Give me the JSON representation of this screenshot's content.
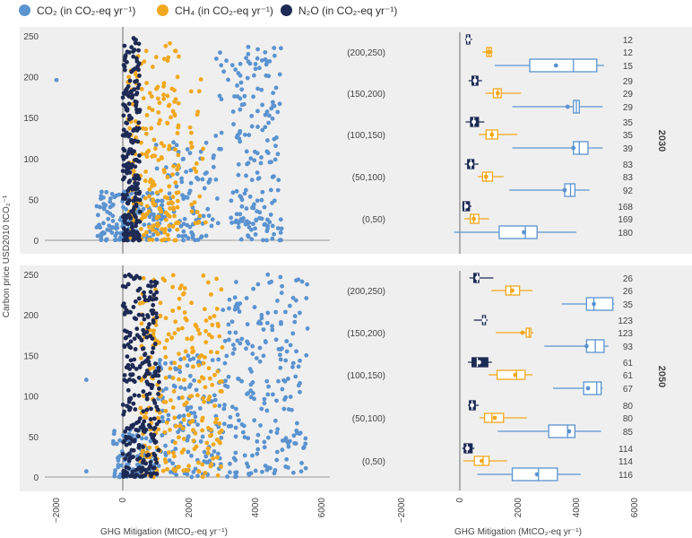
{
  "legend": {
    "co2": {
      "label": "CO₂ (in CO₂-eq yr⁻¹)",
      "color": "#5b93d0"
    },
    "ch4": {
      "label": "CH₄ (in CO₂-eq yr⁻¹)",
      "color": "#f2a81d"
    },
    "n2o": {
      "label": "N₂O (in CO₂-eq yr⁻¹)",
      "color": "#1d2a55"
    }
  },
  "axes": {
    "y_label": "Carbon price USD2010 tCO₂⁻¹",
    "x_label": "GHG Mitigation (MtCO₂-eq yr⁻¹)",
    "x_ticks": [
      "−2000",
      "0",
      "2000",
      "4000",
      "6000"
    ],
    "y_ticks": [
      "0",
      "50",
      "100",
      "150",
      "200",
      "250"
    ]
  },
  "chart_data": [
    {
      "type": "scatter",
      "panel": "2030",
      "xlim": [
        -2600,
        6400
      ],
      "ylim": [
        0,
        255
      ],
      "note": "point clouds approximated"
    },
    {
      "type": "box",
      "panel": "2030",
      "year_label": "2030",
      "xlim": [
        -2600,
        6400
      ],
      "groups": [
        {
          "category": "(200,250)",
          "boxes": [
            {
              "gas": "n2o",
              "n": "12",
              "min": 180,
              "q1": 230,
              "median": 280,
              "q3": 340,
              "max": 420,
              "mean": 290
            },
            {
              "gas": "ch4",
              "n": "12",
              "min": 780,
              "q1": 920,
              "median": 1000,
              "q3": 1080,
              "max": 1130,
              "mean": 1000
            },
            {
              "gas": "co2",
              "n": "15",
              "min": 1200,
              "q1": 2400,
              "median": 3900,
              "q3": 4700,
              "max": 4950,
              "mean": 3300
            }
          ]
        },
        {
          "category": "(150,200)",
          "boxes": [
            {
              "gas": "n2o",
              "n": "29",
              "min": 300,
              "q1": 420,
              "median": 520,
              "q3": 620,
              "max": 760,
              "mean": 520
            },
            {
              "gas": "ch4",
              "n": "29",
              "min": 880,
              "q1": 1150,
              "median": 1300,
              "q3": 1420,
              "max": 2100,
              "mean": 1300
            },
            {
              "gas": "co2",
              "n": "29",
              "min": 1800,
              "q1": 3900,
              "median": 4000,
              "q3": 4100,
              "max": 4900,
              "mean": 3700
            }
          ]
        },
        {
          "category": "(100,150)",
          "boxes": [
            {
              "gas": "n2o",
              "n": "35",
              "min": 200,
              "q1": 370,
              "median": 480,
              "q3": 640,
              "max": 840,
              "mean": 480
            },
            {
              "gas": "ch4",
              "n": "35",
              "min": 650,
              "q1": 900,
              "median": 1100,
              "q3": 1300,
              "max": 1980,
              "mean": 1100
            },
            {
              "gas": "co2",
              "n": "39",
              "min": 1800,
              "q1": 3900,
              "median": 4100,
              "q3": 4400,
              "max": 4900,
              "mean": 3900
            }
          ]
        },
        {
          "category": "(50,100)",
          "boxes": [
            {
              "gas": "n2o",
              "n": "83",
              "min": 170,
              "q1": 270,
              "median": 380,
              "q3": 480,
              "max": 640,
              "mean": 380
            },
            {
              "gas": "ch4",
              "n": "83",
              "min": 610,
              "q1": 780,
              "median": 900,
              "q3": 1120,
              "max": 1500,
              "mean": 900
            },
            {
              "gas": "co2",
              "n": "92",
              "min": 1700,
              "q1": 3600,
              "median": 3800,
              "q3": 3950,
              "max": 4450,
              "mean": 3600
            }
          ]
        },
        {
          "category": "(0,50)",
          "boxes": [
            {
              "gas": "n2o",
              "n": "168",
              "min": 80,
              "q1": 110,
              "median": 180,
              "q3": 330,
              "max": 400,
              "mean": 220
            },
            {
              "gas": "ch4",
              "n": "169",
              "min": 160,
              "q1": 360,
              "median": 480,
              "q3": 650,
              "max": 1000,
              "mean": 480
            },
            {
              "gas": "co2",
              "n": "180",
              "min": -200,
              "q1": 1350,
              "median": 2250,
              "q3": 2650,
              "max": 4000,
              "mean": 2200
            }
          ]
        }
      ]
    },
    {
      "type": "scatter",
      "panel": "2050",
      "xlim": [
        -2600,
        6400
      ],
      "ylim": [
        0,
        255
      ],
      "note": "point clouds approximated"
    },
    {
      "type": "box",
      "panel": "2050",
      "year_label": "2050",
      "xlim": [
        -2600,
        6400
      ],
      "groups": [
        {
          "category": "(200,250)",
          "boxes": [
            {
              "gas": "n2o",
              "n": "26",
              "min": 330,
              "q1": 480,
              "median": 600,
              "q3": 650,
              "max": 1150,
              "mean": 600
            },
            {
              "gas": "ch4",
              "n": "26",
              "min": 1080,
              "q1": 1580,
              "median": 1750,
              "q3": 2050,
              "max": 2500,
              "mean": 1800
            },
            {
              "gas": "co2",
              "n": "35",
              "min": 3500,
              "q1": 4350,
              "median": 4600,
              "q3": 5250,
              "max": 5300,
              "mean": 4600
            }
          ]
        },
        {
          "category": "(150,200)",
          "boxes": [
            {
              "gas": "n2o",
              "n": "123",
              "min": 480,
              "q1": 780,
              "median": 830,
              "q3": 880,
              "max": 960,
              "mean": 830
            },
            {
              "gas": "ch4",
              "n": "123",
              "min": 1230,
              "q1": 2280,
              "median": 2380,
              "q3": 2440,
              "max": 2520,
              "mean": 2150
            },
            {
              "gas": "co2",
              "n": "93",
              "min": 2900,
              "q1": 4350,
              "median": 4650,
              "q3": 4950,
              "max": 5100,
              "mean": 4350
            }
          ]
        },
        {
          "category": "(100,150)",
          "boxes": [
            {
              "gas": "n2o",
              "n": "61",
              "min": 280,
              "q1": 420,
              "median": 600,
              "q3": 960,
              "max": 1100,
              "mean": 660
            },
            {
              "gas": "ch4",
              "n": "61",
              "min": 980,
              "q1": 1280,
              "median": 1950,
              "q3": 2240,
              "max": 2500,
              "mean": 1900
            },
            {
              "gas": "co2",
              "n": "67",
              "min": 3200,
              "q1": 4250,
              "median": 4700,
              "q3": 4850,
              "max": 4900,
              "mean": 4400
            }
          ]
        },
        {
          "category": "(50,100)",
          "boxes": [
            {
              "gas": "n2o",
              "n": "80",
              "min": 280,
              "q1": 330,
              "median": 420,
              "q3": 530,
              "max": 650,
              "mean": 420
            },
            {
              "gas": "ch4",
              "n": "80",
              "min": 680,
              "q1": 850,
              "median": 1100,
              "q3": 1500,
              "max": 2300,
              "mean": 1200
            },
            {
              "gas": "co2",
              "n": "85",
              "min": 1300,
              "q1": 3050,
              "median": 3700,
              "q3": 3950,
              "max": 4850,
              "mean": 3750
            }
          ]
        },
        {
          "category": "(0,50)",
          "boxes": [
            {
              "gas": "n2o",
              "n": "114",
              "min": 80,
              "q1": 150,
              "median": 250,
              "q3": 420,
              "max": 500,
              "mean": 260
            },
            {
              "gas": "ch4",
              "n": "114",
              "min": 120,
              "q1": 500,
              "median": 800,
              "q3": 1000,
              "max": 1620,
              "mean": 750
            },
            {
              "gas": "co2",
              "n": "116",
              "min": 600,
              "q1": 1800,
              "median": 2700,
              "q3": 3350,
              "max": 4150,
              "mean": 2650
            }
          ]
        }
      ]
    }
  ]
}
